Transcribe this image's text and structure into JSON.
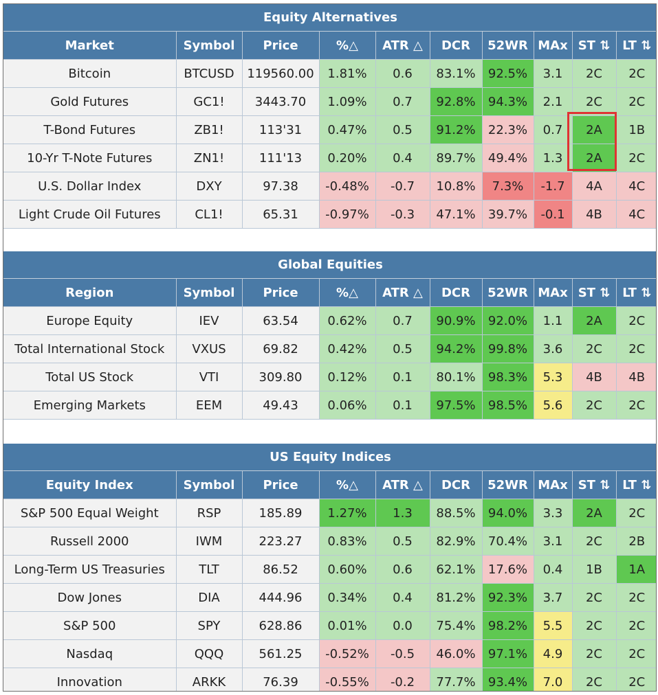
{
  "colors": {
    "header": "#4a7aa6",
    "plain": "#f2f2f2",
    "light_green": "#b9e3b5",
    "dark_green": "#5fc851",
    "light_red": "#f4c7c7",
    "dark_red": "#f08585",
    "yellow": "#f6ec8a",
    "highlight_border": "#e03333"
  },
  "sections": [
    {
      "title": "Equity Alternatives",
      "columns": [
        "Market",
        "Symbol",
        "Price",
        "%△",
        "ATR △",
        "DCR",
        "52WR",
        "MAx",
        "ST ⇅",
        "LT ⇅"
      ],
      "rows": [
        {
          "cells": [
            "Bitcoin",
            "BTCUSD",
            "119560.00",
            "1.81%",
            "0.6",
            "83.1%",
            "92.5%",
            "3.1",
            "2C",
            "2C"
          ],
          "colors": [
            "plain",
            "plain",
            "plain",
            "light_green",
            "light_green",
            "light_green",
            "dark_green",
            "light_green",
            "light_green",
            "light_green"
          ]
        },
        {
          "cells": [
            "Gold Futures",
            "GC1!",
            "3443.70",
            "1.09%",
            "0.7",
            "92.8%",
            "94.3%",
            "2.1",
            "2C",
            "2C"
          ],
          "colors": [
            "plain",
            "plain",
            "plain",
            "light_green",
            "light_green",
            "dark_green",
            "dark_green",
            "light_green",
            "light_green",
            "light_green"
          ]
        },
        {
          "cells": [
            "T-Bond Futures",
            "ZB1!",
            "113'31",
            "0.47%",
            "0.5",
            "91.2%",
            "22.3%",
            "0.7",
            "2A",
            "1B"
          ],
          "colors": [
            "plain",
            "plain",
            "plain",
            "light_green",
            "light_green",
            "dark_green",
            "light_red",
            "light_green",
            "dark_green",
            "light_green"
          ]
        },
        {
          "cells": [
            "10-Yr T-Note Futures",
            "ZN1!",
            "111'13",
            "0.20%",
            "0.4",
            "89.7%",
            "49.4%",
            "1.3",
            "2A",
            "2C"
          ],
          "colors": [
            "plain",
            "plain",
            "plain",
            "light_green",
            "light_green",
            "light_green",
            "light_red",
            "light_green",
            "dark_green",
            "light_green"
          ]
        },
        {
          "cells": [
            "U.S. Dollar Index",
            "DXY",
            "97.38",
            "-0.48%",
            "-0.7",
            "10.8%",
            "7.3%",
            "-1.7",
            "4A",
            "4C"
          ],
          "colors": [
            "plain",
            "plain",
            "plain",
            "light_red",
            "light_red",
            "light_red",
            "dark_red",
            "dark_red",
            "light_red",
            "light_red"
          ]
        },
        {
          "cells": [
            "Light Crude Oil Futures",
            "CL1!",
            "65.31",
            "-0.97%",
            "-0.3",
            "47.1%",
            "39.7%",
            "-0.1",
            "4B",
            "4C"
          ],
          "colors": [
            "plain",
            "plain",
            "plain",
            "light_red",
            "light_red",
            "light_red",
            "light_red",
            "dark_red",
            "light_red",
            "light_red"
          ]
        }
      ]
    },
    {
      "title": "Global Equities",
      "columns": [
        "Region",
        "Symbol",
        "Price",
        "%△",
        "ATR △",
        "DCR",
        "52WR",
        "MAx",
        "ST ⇅",
        "LT ⇅"
      ],
      "rows": [
        {
          "cells": [
            "Europe Equity",
            "IEV",
            "63.54",
            "0.62%",
            "0.7",
            "90.9%",
            "92.0%",
            "1.1",
            "2A",
            "2C"
          ],
          "colors": [
            "plain",
            "plain",
            "plain",
            "light_green",
            "light_green",
            "dark_green",
            "dark_green",
            "light_green",
            "dark_green",
            "light_green"
          ]
        },
        {
          "cells": [
            "Total International Stock",
            "VXUS",
            "69.82",
            "0.42%",
            "0.5",
            "94.2%",
            "99.8%",
            "3.6",
            "2C",
            "2C"
          ],
          "colors": [
            "plain",
            "plain",
            "plain",
            "light_green",
            "light_green",
            "dark_green",
            "dark_green",
            "light_green",
            "light_green",
            "light_green"
          ]
        },
        {
          "cells": [
            "Total US Stock",
            "VTI",
            "309.80",
            "0.12%",
            "0.1",
            "80.1%",
            "98.3%",
            "5.3",
            "4B",
            "4B"
          ],
          "colors": [
            "plain",
            "plain",
            "plain",
            "light_green",
            "light_green",
            "light_green",
            "dark_green",
            "yellow",
            "light_red",
            "light_red"
          ]
        },
        {
          "cells": [
            "Emerging Markets",
            "EEM",
            "49.43",
            "0.06%",
            "0.1",
            "97.5%",
            "98.5%",
            "5.6",
            "2C",
            "2C"
          ],
          "colors": [
            "plain",
            "plain",
            "plain",
            "light_green",
            "light_green",
            "dark_green",
            "dark_green",
            "yellow",
            "light_green",
            "light_green"
          ]
        }
      ]
    },
    {
      "title": "US Equity Indices",
      "columns": [
        "Equity Index",
        "Symbol",
        "Price",
        "%△",
        "ATR △",
        "DCR",
        "52WR",
        "MAx",
        "ST ⇅",
        "LT ⇅"
      ],
      "rows": [
        {
          "cells": [
            "S&P 500 Equal Weight",
            "RSP",
            "185.89",
            "1.27%",
            "1.3",
            "88.5%",
            "94.0%",
            "3.3",
            "2A",
            "2C"
          ],
          "colors": [
            "plain",
            "plain",
            "plain",
            "dark_green",
            "dark_green",
            "light_green",
            "dark_green",
            "light_green",
            "dark_green",
            "light_green"
          ]
        },
        {
          "cells": [
            "Russell 2000",
            "IWM",
            "223.27",
            "0.83%",
            "0.5",
            "82.9%",
            "70.4%",
            "3.1",
            "2C",
            "2B"
          ],
          "colors": [
            "plain",
            "plain",
            "plain",
            "light_green",
            "light_green",
            "light_green",
            "light_green",
            "light_green",
            "light_green",
            "light_green"
          ]
        },
        {
          "cells": [
            "Long-Term US Treasuries",
            "TLT",
            "86.52",
            "0.60%",
            "0.6",
            "62.1%",
            "17.6%",
            "0.4",
            "1B",
            "1A"
          ],
          "colors": [
            "plain",
            "plain",
            "plain",
            "light_green",
            "light_green",
            "light_green",
            "light_red",
            "light_green",
            "light_green",
            "dark_green"
          ]
        },
        {
          "cells": [
            "Dow Jones",
            "DIA",
            "444.96",
            "0.34%",
            "0.4",
            "81.2%",
            "92.3%",
            "3.7",
            "2C",
            "2C"
          ],
          "colors": [
            "plain",
            "plain",
            "plain",
            "light_green",
            "light_green",
            "light_green",
            "dark_green",
            "light_green",
            "light_green",
            "light_green"
          ]
        },
        {
          "cells": [
            "S&P 500",
            "SPY",
            "628.86",
            "0.01%",
            "0.0",
            "75.4%",
            "98.2%",
            "5.5",
            "2C",
            "2C"
          ],
          "colors": [
            "plain",
            "plain",
            "plain",
            "light_green",
            "light_green",
            "light_green",
            "dark_green",
            "yellow",
            "light_green",
            "light_green"
          ]
        },
        {
          "cells": [
            "Nasdaq",
            "QQQ",
            "561.25",
            "-0.52%",
            "-0.5",
            "46.0%",
            "97.1%",
            "4.9",
            "2C",
            "2C"
          ],
          "colors": [
            "plain",
            "plain",
            "plain",
            "light_red",
            "light_red",
            "light_red",
            "dark_green",
            "yellow",
            "light_green",
            "light_green"
          ]
        },
        {
          "cells": [
            "Innovation",
            "ARKK",
            "76.39",
            "-0.55%",
            "-0.2",
            "77.7%",
            "93.4%",
            "7.0",
            "2C",
            "2C"
          ],
          "colors": [
            "plain",
            "plain",
            "plain",
            "light_red",
            "light_red",
            "light_green",
            "dark_green",
            "yellow",
            "light_green",
            "light_green"
          ]
        }
      ]
    }
  ]
}
